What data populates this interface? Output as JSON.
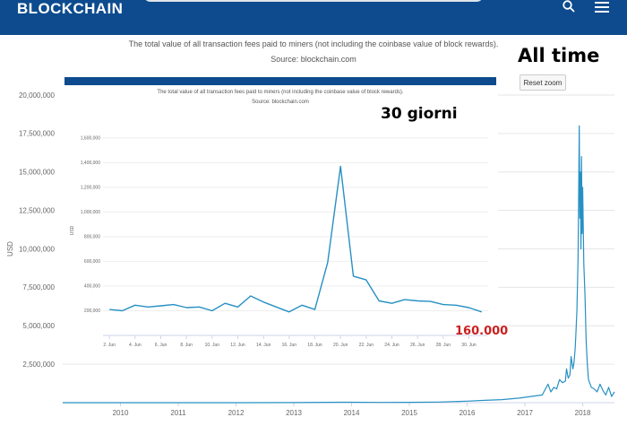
{
  "header": {
    "brand": "BLOCKCHAIN",
    "search_icon": "search-icon",
    "menu_icon": "hamburger-menu-icon",
    "background_color": "#0d4b8e"
  },
  "description": "The total value of all transaction fees paid to miners (not including the coinbase value of block rewards).",
  "source": "Source: blockchain.com",
  "annotations": {
    "all_time": "All time",
    "thirty_days": "30 giorni",
    "last_value": "160.000"
  },
  "reset_zoom_label": "Reset zoom",
  "chart_data": [
    {
      "type": "line",
      "title": "",
      "ylabel": "USD",
      "ylim": [
        0,
        20000000
      ],
      "yticks": [
        "2,500,000",
        "5,000,000",
        "7,500,000",
        "10,000,000",
        "12,500,000",
        "15,000,000",
        "17,500,000",
        "20,000,000"
      ],
      "xlim": [
        2009.0,
        2018.55
      ],
      "xticks": [
        "2010",
        "2011",
        "2012",
        "2013",
        "2014",
        "2015",
        "2016",
        "2017",
        "2018"
      ],
      "grid": true,
      "line_color": "#2790c3",
      "series": [
        {
          "x": [
            2009.0,
            2010.0,
            2011.0,
            2012.0,
            2013.0,
            2013.9,
            2014.5,
            2015.0,
            2015.5,
            2016.0,
            2016.3,
            2016.6,
            2016.9,
            2017.1,
            2017.3,
            2017.4,
            2017.45,
            2017.5,
            2017.55,
            2017.6,
            2017.65,
            2017.7,
            2017.72,
            2017.75,
            2017.78,
            2017.8,
            2017.83,
            2017.85,
            2017.87,
            2017.88,
            2017.9,
            2017.92,
            2017.94,
            2017.95,
            2017.96,
            2017.97,
            2017.98,
            2017.99,
            2018.0,
            2018.02,
            2018.04,
            2018.06,
            2018.08,
            2018.1,
            2018.15,
            2018.2,
            2018.25,
            2018.3,
            2018.35,
            2018.4,
            2018.45,
            2018.5,
            2018.55
          ],
          "y": [
            0,
            0,
            0,
            0,
            5000,
            30000,
            20000,
            25000,
            40000,
            100000,
            150000,
            200000,
            300000,
            400000,
            500000,
            1200000,
            700000,
            1000000,
            900000,
            1500000,
            1300000,
            1400000,
            2200000,
            1600000,
            1800000,
            3000000,
            2200000,
            2600000,
            3500000,
            4300000,
            6000000,
            9500000,
            18000000,
            12000000,
            15000000,
            10000000,
            16000000,
            11000000,
            14000000,
            9000000,
            7000000,
            4000000,
            2500000,
            1500000,
            1000000,
            900000,
            700000,
            1200000,
            800000,
            500000,
            1000000,
            400000,
            700000
          ]
        }
      ]
    },
    {
      "type": "line",
      "title": "The total value of all transaction fees paid to miners (not including the coinbase value of block rewards).",
      "subtitle": "Source: blockchain.com",
      "ylabel": "USD",
      "ylim": [
        0,
        1700000
      ],
      "yticks": [
        "200,000",
        "400,000",
        "600,000",
        "800,000",
        "1,000,000",
        "1,200,000",
        "1,400,000",
        "1,600,000"
      ],
      "xlim": [
        1.5,
        31.5
      ],
      "xticks": [
        "2. Jun",
        "4. Jun",
        "6. Jun",
        "8. Jun",
        "10. Jun",
        "12. Jun",
        "14. Jun",
        "16. Jun",
        "18. Jun",
        "20. Jun",
        "22. Jun",
        "24. Jun",
        "26. Jun",
        "28. Jun",
        "30. Jun"
      ],
      "grid": true,
      "line_color": "#2790c3",
      "series": [
        {
          "x": [
            2,
            3,
            4,
            5,
            6,
            7,
            8,
            9,
            10,
            11,
            12,
            13,
            14,
            15,
            16,
            17,
            18,
            19,
            20,
            21,
            22,
            23,
            24,
            25,
            26,
            27,
            28,
            29,
            30,
            31
          ],
          "y": [
            210000,
            200000,
            245000,
            230000,
            240000,
            250000,
            225000,
            230000,
            200000,
            260000,
            230000,
            320000,
            270000,
            230000,
            190000,
            245000,
            210000,
            590000,
            1370000,
            480000,
            450000,
            280000,
            260000,
            290000,
            280000,
            275000,
            250000,
            245000,
            225000,
            190000
          ]
        }
      ]
    }
  ]
}
